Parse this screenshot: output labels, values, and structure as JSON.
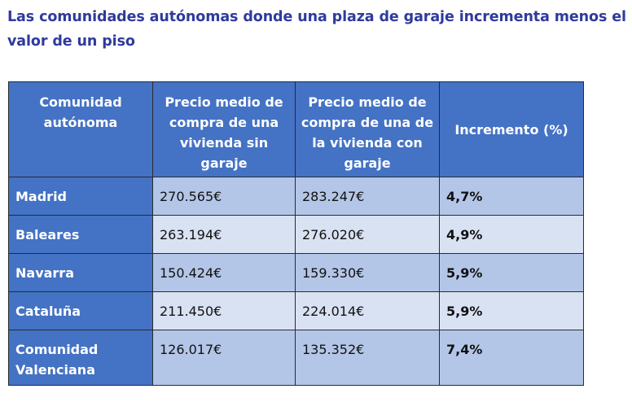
{
  "title": "Las comunidades autónomas donde una plaza de garaje incrementa menos el valor de un piso",
  "table": {
    "headers": [
      "Comunidad autónoma",
      "Precio medio de compra de una vivienda sin garaje",
      "Precio medio de compra de una de la vivienda con garaje",
      "Incremento (%)"
    ],
    "rows": [
      {
        "region": "Madrid",
        "sin_garaje": "270.565€",
        "con_garaje": "283.247€",
        "incremento": "4,7%"
      },
      {
        "region": "Baleares",
        "sin_garaje": "263.194€",
        "con_garaje": "276.020€",
        "incremento": "4,9%"
      },
      {
        "region": "Navarra",
        "sin_garaje": "150.424€",
        "con_garaje": "159.330€",
        "incremento": "5,9%"
      },
      {
        "region": "Cataluña",
        "sin_garaje": "211.450€",
        "con_garaje": "224.014€",
        "incremento": "5,9%"
      },
      {
        "region": "Comunidad Valenciana",
        "sin_garaje": "126.017€",
        "con_garaje": "135.352€",
        "incremento": "7,4%"
      }
    ]
  },
  "colors": {
    "title": "#2f3a9e",
    "header_bg": "#4472c4",
    "row_dark": "#b4c6e7",
    "row_light": "#d9e2f3"
  }
}
